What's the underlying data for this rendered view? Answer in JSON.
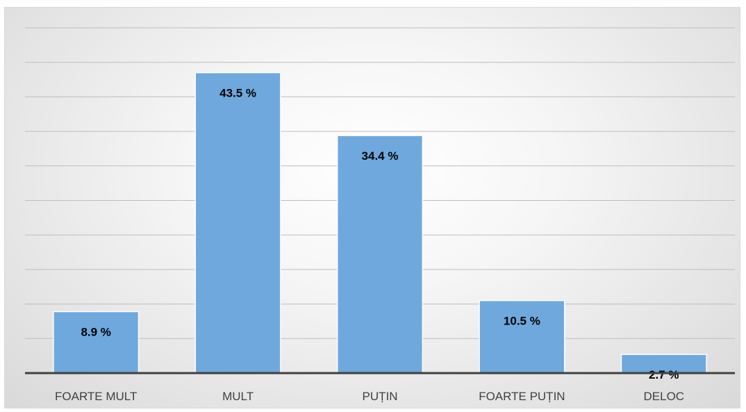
{
  "chart_data": {
    "type": "bar",
    "categories": [
      "FOARTE MULT",
      "MULT",
      "PUȚIN",
      "FOARTE PUȚIN",
      "DELOC"
    ],
    "values": [
      8.9,
      43.5,
      34.4,
      10.5,
      2.7
    ],
    "data_labels": [
      "8.9 %",
      "43.5 %",
      "34.4 %",
      "10.5 %",
      "2.7 %"
    ],
    "title": "",
    "xlabel": "",
    "ylabel": "",
    "ylim": [
      0,
      50
    ],
    "grid": true,
    "legend": "none",
    "colors": {
      "bar": "#6fa8dc",
      "grid": "#bdbdbd",
      "axis": "#404040"
    }
  }
}
